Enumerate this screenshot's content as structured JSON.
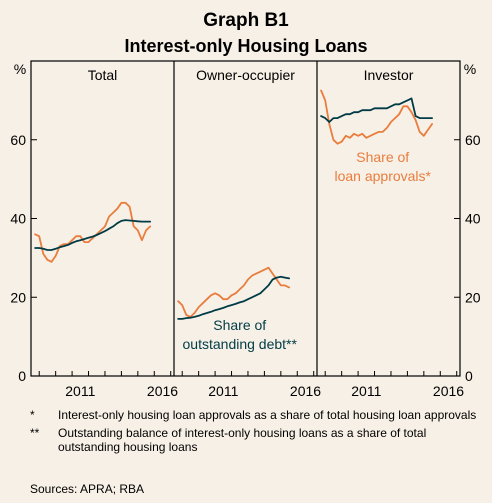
{
  "title": "Graph B1",
  "subtitle": "Interest-only Housing Loans",
  "y_unit_left": "%",
  "y_unit_right": "%",
  "colors": {
    "approvals": "#e87d3e",
    "outstanding": "#003b46",
    "background": "#f7f0e6",
    "frame": "#000000"
  },
  "chart_data": {
    "type": "line",
    "ylim": [
      0,
      80
    ],
    "yticks": [
      0,
      20,
      40,
      60
    ],
    "xlim": [
      2008.5,
      2017.2
    ],
    "xticks": [
      2011,
      2016
    ],
    "grid": false,
    "panels": [
      {
        "title": "Total",
        "series": [
          {
            "key": "approvals",
            "x": [
              2008.75,
              2009.0,
              2009.25,
              2009.5,
              2009.75,
              2010.0,
              2010.25,
              2010.5,
              2010.75,
              2011.0,
              2011.25,
              2011.5,
              2011.75,
              2012.0,
              2012.25,
              2012.5,
              2012.75,
              2013.0,
              2013.25,
              2013.5,
              2013.75,
              2014.0,
              2014.25,
              2014.5,
              2014.75,
              2015.0,
              2015.25,
              2015.5,
              2015.75,
              2016.0,
              2016.25,
              2016.5,
              2016.75
            ],
            "values": [
              36,
              35.5,
              31,
              29.5,
              29,
              30.5,
              33,
              33.5,
              33.5,
              34.5,
              35.5,
              35.5,
              34,
              34,
              35,
              36,
              37,
              38,
              40.5,
              41.5,
              42.5,
              44,
              44,
              43,
              38,
              37,
              34.5,
              37,
              38,
              null,
              null,
              null,
              null
            ]
          },
          {
            "key": "outstanding",
            "x": [
              2008.75,
              2009.0,
              2009.25,
              2009.5,
              2009.75,
              2010.0,
              2010.25,
              2010.5,
              2010.75,
              2011.0,
              2011.25,
              2011.5,
              2011.75,
              2012.0,
              2012.25,
              2012.5,
              2012.75,
              2013.0,
              2013.25,
              2013.5,
              2013.75,
              2014.0,
              2014.25,
              2014.5,
              2014.75,
              2015.0,
              2015.25,
              2015.5,
              2015.75
            ],
            "values": [
              32.5,
              32.5,
              32.3,
              32,
              32,
              32.3,
              32.7,
              33,
              33.3,
              33.8,
              34.2,
              34.5,
              34.8,
              35.1,
              35.4,
              35.8,
              36.3,
              36.8,
              37.4,
              38,
              38.8,
              39.4,
              39.6,
              39.5,
              39.4,
              39.3,
              39.2,
              39.2,
              39.2
            ]
          }
        ]
      },
      {
        "title": "Owner-occupier",
        "series": [
          {
            "key": "approvals",
            "x": [
              2008.75,
              2009.0,
              2009.25,
              2009.5,
              2009.75,
              2010.0,
              2010.25,
              2010.5,
              2010.75,
              2011.0,
              2011.25,
              2011.5,
              2011.75,
              2012.0,
              2012.25,
              2012.5,
              2012.75,
              2013.0,
              2013.25,
              2013.5,
              2013.75,
              2014.0,
              2014.25,
              2014.5,
              2014.75,
              2015.0,
              2015.25,
              2015.5,
              2015.75
            ],
            "values": [
              19,
              18,
              15.5,
              15,
              16,
              17.5,
              18.5,
              19.5,
              20.5,
              21,
              20.5,
              19.5,
              19.5,
              20.5,
              21,
              22,
              23,
              24.5,
              25.5,
              26,
              26.5,
              27,
              27.5,
              26,
              24.5,
              23,
              23,
              22.5,
              null
            ]
          },
          {
            "key": "outstanding",
            "x": [
              2008.75,
              2009.0,
              2009.25,
              2009.5,
              2009.75,
              2010.0,
              2010.25,
              2010.5,
              2010.75,
              2011.0,
              2011.25,
              2011.5,
              2011.75,
              2012.0,
              2012.25,
              2012.5,
              2012.75,
              2013.0,
              2013.25,
              2013.5,
              2013.75,
              2014.0,
              2014.25,
              2014.5,
              2014.75,
              2015.0,
              2015.25,
              2015.5
            ],
            "values": [
              14.5,
              14.5,
              14.7,
              14.8,
              15,
              15.3,
              15.7,
              16,
              16.3,
              16.7,
              17,
              17.3,
              17.7,
              18,
              18.3,
              18.7,
              19,
              19.5,
              20,
              20.5,
              21,
              22,
              23,
              24.5,
              25,
              25.2,
              25,
              24.8
            ]
          }
        ]
      },
      {
        "title": "Investor",
        "series": [
          {
            "key": "approvals",
            "x": [
              2008.75,
              2009.0,
              2009.25,
              2009.5,
              2009.75,
              2010.0,
              2010.25,
              2010.5,
              2010.75,
              2011.0,
              2011.25,
              2011.5,
              2011.75,
              2012.0,
              2012.25,
              2012.5,
              2012.75,
              2013.0,
              2013.25,
              2013.5,
              2013.75,
              2014.0,
              2014.25,
              2014.5,
              2014.75,
              2015.0,
              2015.25,
              2015.5,
              2015.75
            ],
            "values": [
              72.5,
              70,
              64,
              60,
              59,
              59.5,
              61,
              60.5,
              61.5,
              61,
              61.5,
              60.5,
              61,
              61.5,
              62,
              62,
              63,
              64.5,
              65.5,
              66.5,
              68.5,
              68.5,
              67,
              65,
              62,
              61,
              62.5,
              64,
              null
            ]
          },
          {
            "key": "outstanding",
            "x": [
              2008.75,
              2009.0,
              2009.25,
              2009.5,
              2009.75,
              2010.0,
              2010.25,
              2010.5,
              2010.75,
              2011.0,
              2011.25,
              2011.5,
              2011.75,
              2012.0,
              2012.25,
              2012.5,
              2012.75,
              2013.0,
              2013.25,
              2013.5,
              2013.75,
              2014.0,
              2014.25,
              2014.5,
              2014.75,
              2015.0,
              2015.25,
              2015.5
            ],
            "values": [
              66,
              65.5,
              64.5,
              65.5,
              65.5,
              66,
              66.5,
              66.5,
              67,
              67,
              67.5,
              67.5,
              67.5,
              68,
              68,
              68,
              68,
              68.5,
              69,
              69,
              69.5,
              70,
              70.5,
              66,
              65.5,
              65.5,
              65.5,
              65.5
            ]
          }
        ]
      }
    ],
    "annotations": [
      {
        "panel": 2,
        "lines": [
          "Share of",
          "loan approvals*"
        ],
        "color_key": "approvals"
      },
      {
        "panel": 1,
        "lines": [
          "Share of",
          "outstanding debt**"
        ],
        "color_key": "outstanding"
      }
    ]
  },
  "notes": [
    {
      "mark": "*",
      "text": "Interest-only housing loan approvals as a share of total housing loan approvals"
    },
    {
      "mark": "**",
      "text": "Outstanding balance of interest-only housing loans as a share of total outstanding housing loans"
    }
  ],
  "sources": "Sources:  APRA; RBA"
}
